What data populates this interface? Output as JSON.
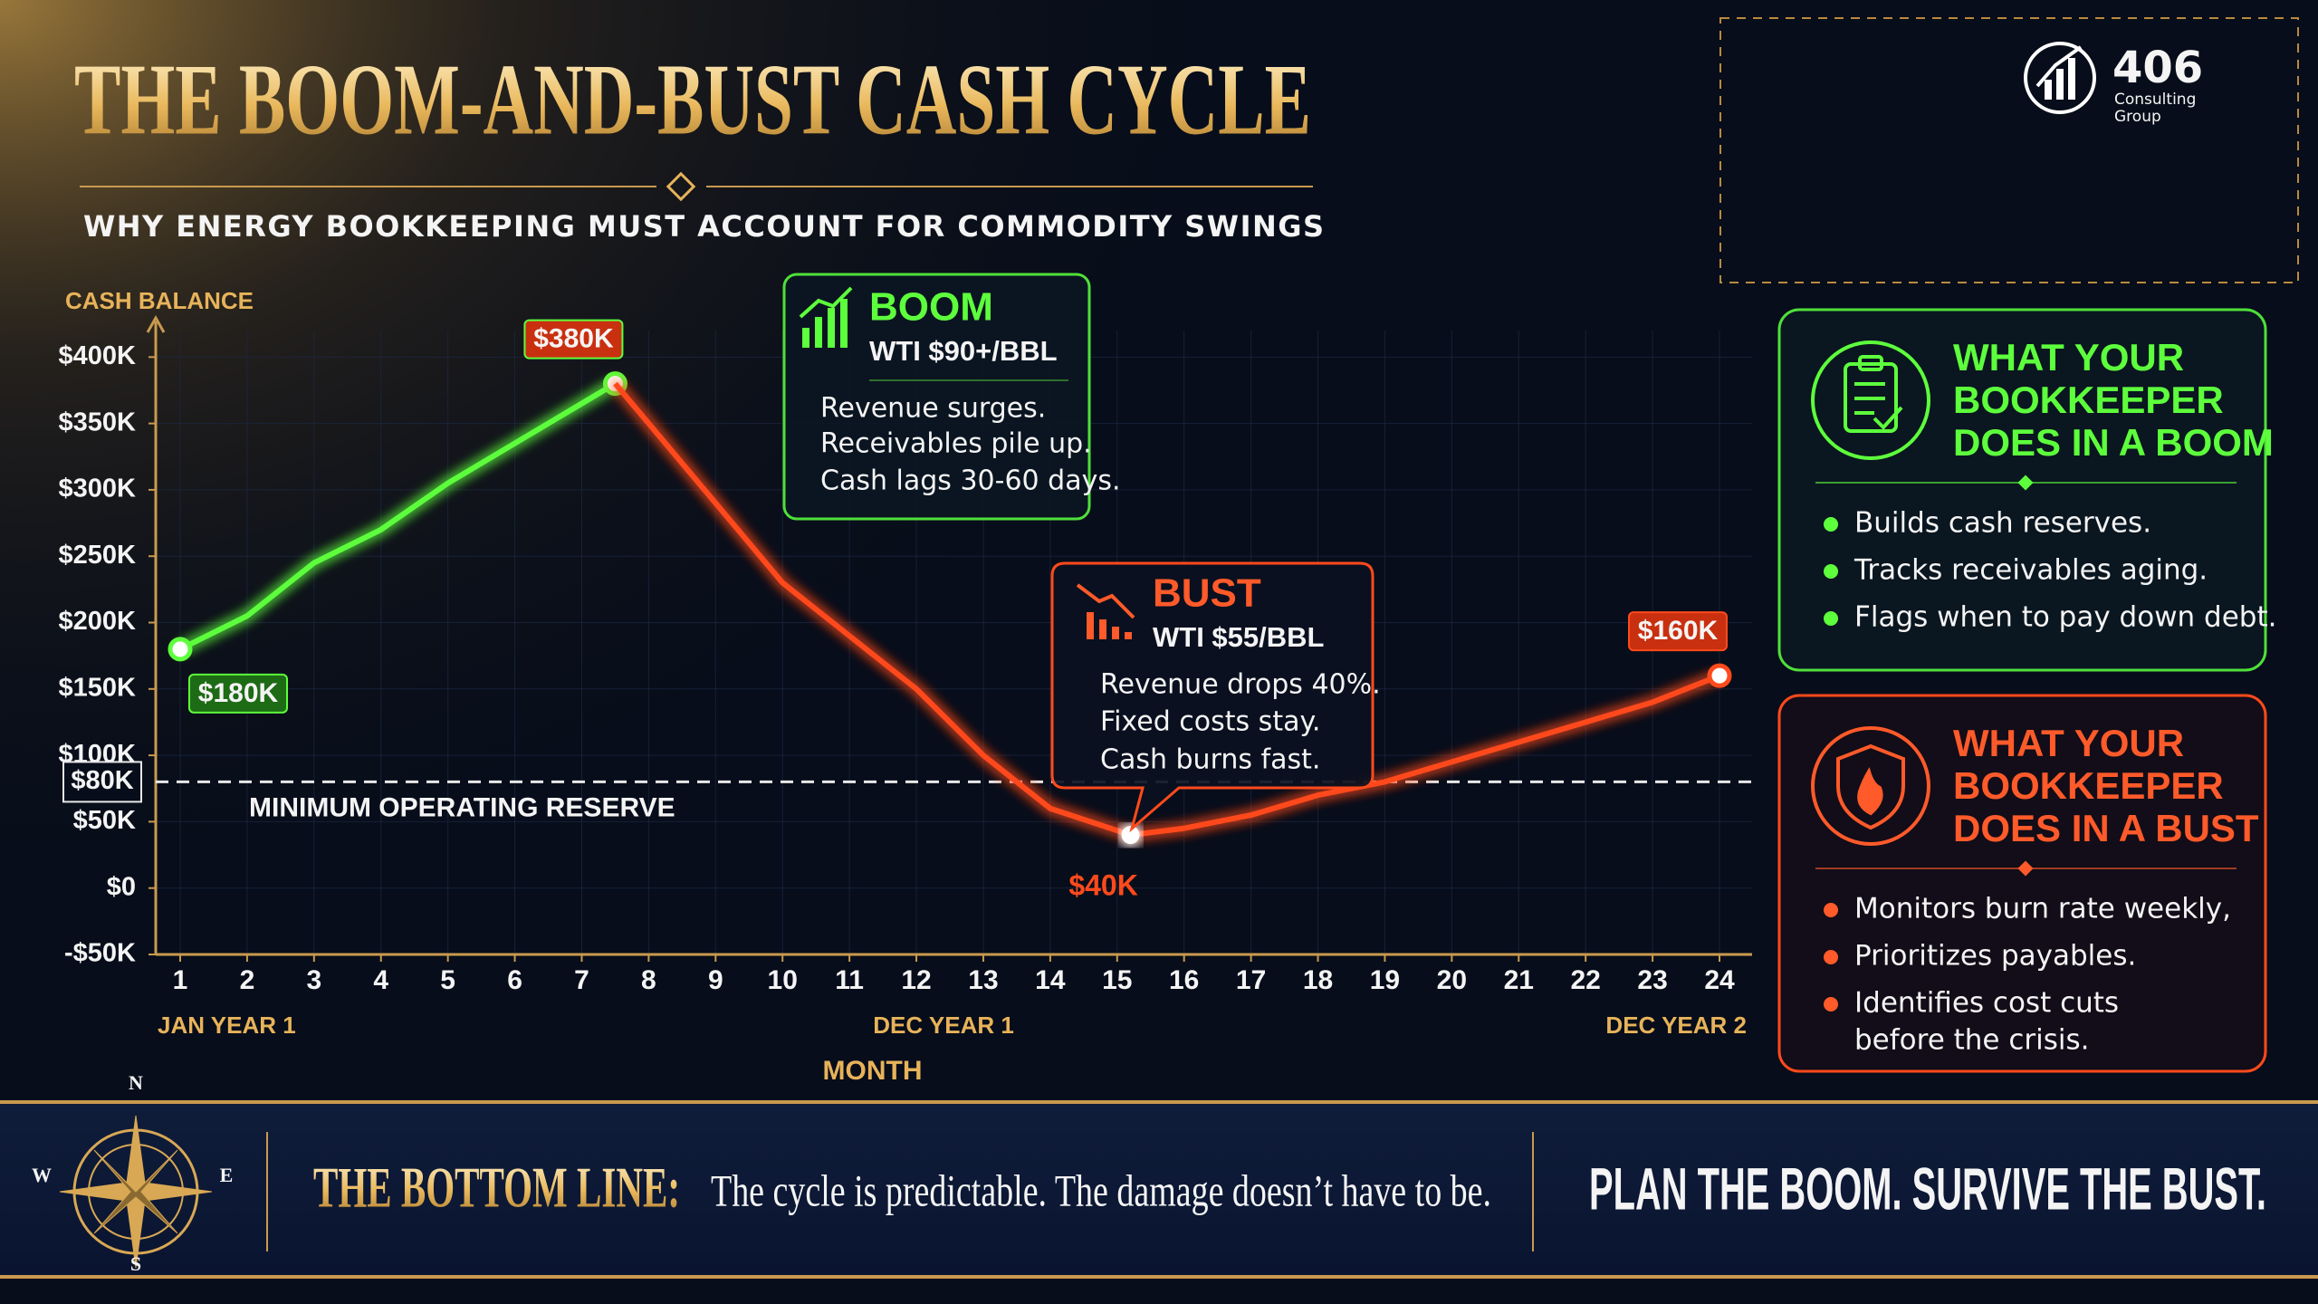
{
  "header": {
    "title": "THE BOOM-AND-BUST CASH CYCLE",
    "subtitle": "WHY ENERGY BOOKKEEPING MUST ACCOUNT FOR COMMODITY SWINGS"
  },
  "logo": {
    "number": "406",
    "line1": "Consulting",
    "line2": "Group"
  },
  "chart_data": {
    "type": "line",
    "y_label": "CASH BALANCE",
    "x_label": "MONTH",
    "x": [
      1,
      2,
      3,
      4,
      5,
      6,
      7,
      7.5,
      8,
      9,
      10,
      11,
      12,
      13,
      14,
      15.2,
      16,
      17,
      18,
      19,
      20,
      21,
      22,
      23,
      24
    ],
    "series": [
      {
        "color": "#5dff3c",
        "values": [
          180,
          205,
          245,
          270,
          305,
          335,
          365,
          380,
          null,
          null,
          null,
          null,
          null,
          null,
          null,
          null,
          null,
          null,
          null,
          null,
          null,
          null,
          null,
          null,
          null
        ],
        "value_labels": [
          "$180K",
          null,
          null,
          null,
          null,
          null,
          null,
          "$380K",
          null,
          null,
          null,
          null,
          null,
          null,
          null,
          null,
          null,
          null,
          null,
          null,
          null,
          null,
          null,
          null,
          null
        ]
      },
      {
        "color": "#ff4a1c",
        "values": [
          null,
          null,
          null,
          null,
          null,
          null,
          null,
          380,
          350,
          290,
          230,
          190,
          150,
          100,
          60,
          40,
          45,
          55,
          70,
          80,
          95,
          110,
          125,
          140,
          160
        ],
        "value_labels": [
          null,
          null,
          null,
          null,
          null,
          null,
          null,
          null,
          null,
          null,
          null,
          null,
          null,
          null,
          null,
          "$40K",
          null,
          null,
          null,
          null,
          null,
          null,
          null,
          null,
          "$160K"
        ]
      }
    ],
    "xlim": [
      0.6,
      24.4
    ],
    "xticks": [
      1,
      2,
      3,
      4,
      5,
      6,
      7,
      8,
      9,
      10,
      11,
      12,
      13,
      14,
      15,
      16,
      17,
      18,
      19,
      20,
      21,
      22,
      23,
      24
    ],
    "x_sublabels": [
      {
        "value": 1,
        "label": "JAN YEAR 1"
      },
      {
        "value": 12,
        "label": "DEC YEAR 1"
      },
      {
        "value": 24,
        "label": "DEC YEAR 2"
      }
    ],
    "ylim": [
      -50,
      420
    ],
    "yticks": [
      {
        "value": 400,
        "label": "$400K"
      },
      {
        "value": 350,
        "label": "$350K"
      },
      {
        "value": 300,
        "label": "$300K"
      },
      {
        "value": 250,
        "label": "$250K"
      },
      {
        "value": 200,
        "label": "$200K"
      },
      {
        "value": 150,
        "label": "$150K"
      },
      {
        "value": 100,
        "label": "$100K"
      },
      {
        "value": 50,
        "label": "$50K"
      },
      {
        "value": 0,
        "label": "$0"
      },
      {
        "value": -50,
        "label": "-$50K"
      }
    ],
    "reference_line": {
      "value": 80,
      "label": "$80K",
      "text": "MINIMUM OPERATING RESERVE"
    },
    "grid": true
  },
  "callouts": {
    "boom": {
      "title": "BOOM",
      "subtitle": "WTI $90+/BBL",
      "lines": [
        "Revenue surges.",
        "Receivables pile up.",
        "Cash lags 30-60 days."
      ]
    },
    "bust": {
      "title": "BUST",
      "subtitle": "WTI $55/BBL",
      "lines": [
        "Revenue drops 40%.",
        "Fixed costs stay.",
        "Cash burns fast."
      ]
    }
  },
  "panels": {
    "boom": {
      "title": [
        "WHAT YOUR",
        "BOOKKEEPER",
        "DOES IN A BOOM"
      ],
      "bullets": [
        [
          "Builds cash reserves."
        ],
        [
          "Tracks receivables aging."
        ],
        [
          "Flags when to pay down debt."
        ]
      ]
    },
    "bust": {
      "title": [
        "WHAT YOUR",
        "BOOKKEEPER",
        "DOES IN A BUST"
      ],
      "bullets": [
        [
          "Monitors burn rate weekly,"
        ],
        [
          "Prioritizes payables."
        ],
        [
          "Identifies cost cuts",
          "before the crisis."
        ]
      ]
    }
  },
  "bottom": {
    "label": "THE BOTTOM LINE:",
    "text": "The cycle is predictable. The damage doesn’t have to be.",
    "slogan": "PLAN THE BOOM. SURVIVE THE BUST.",
    "compass": {
      "n": "N",
      "e": "E",
      "s": "S",
      "w": "W"
    }
  }
}
